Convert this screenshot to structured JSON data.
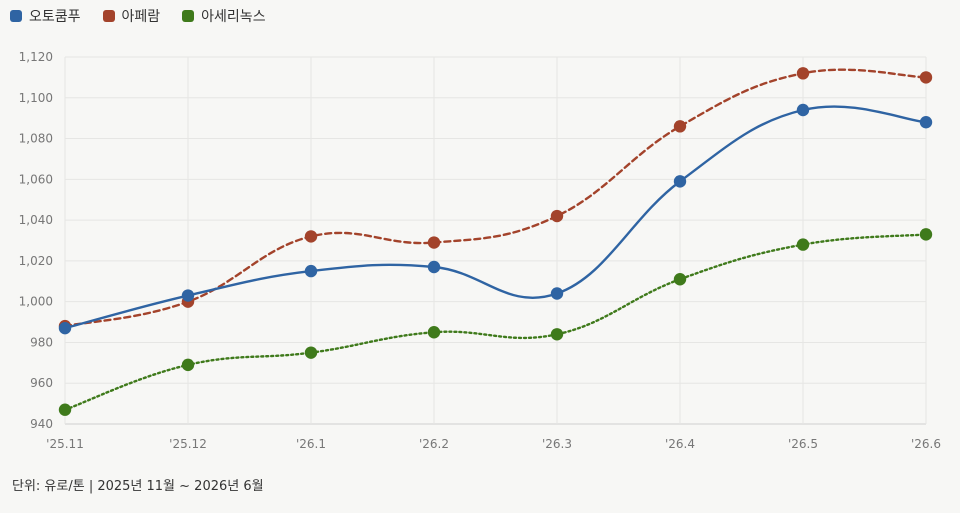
{
  "chart_data": {
    "type": "line",
    "categories": [
      "'25.11",
      "'25.12",
      "'26.1",
      "'26.2",
      "'26.3",
      "'26.4",
      "'26.5",
      "'26.6"
    ],
    "series": [
      {
        "name": "오토쿰푸",
        "color": "#2f64a3",
        "style": "solid",
        "values": [
          987,
          1003,
          1015,
          1017,
          1004,
          1059,
          1094,
          1088
        ]
      },
      {
        "name": "아페람",
        "color": "#a3432b",
        "style": "dashed",
        "values": [
          988,
          1000,
          1032,
          1029,
          1042,
          1086,
          1112,
          1110
        ]
      },
      {
        "name": "아세리녹스",
        "color": "#3f7a1b",
        "style": "dotted",
        "values": [
          947,
          969,
          975,
          985,
          984,
          1011,
          1028,
          1033
        ]
      }
    ],
    "ylim": [
      940,
      1120
    ],
    "yticks": [
      "940",
      "960",
      "980",
      "1,000",
      "1,020",
      "1,040",
      "1,060",
      "1,080",
      "1,100",
      "1,120"
    ],
    "grid": true,
    "legend_position": "top-left"
  },
  "footer": {
    "note": "단위: 유로/톤  |  2025년 11월 ~ 2026년 6월"
  }
}
